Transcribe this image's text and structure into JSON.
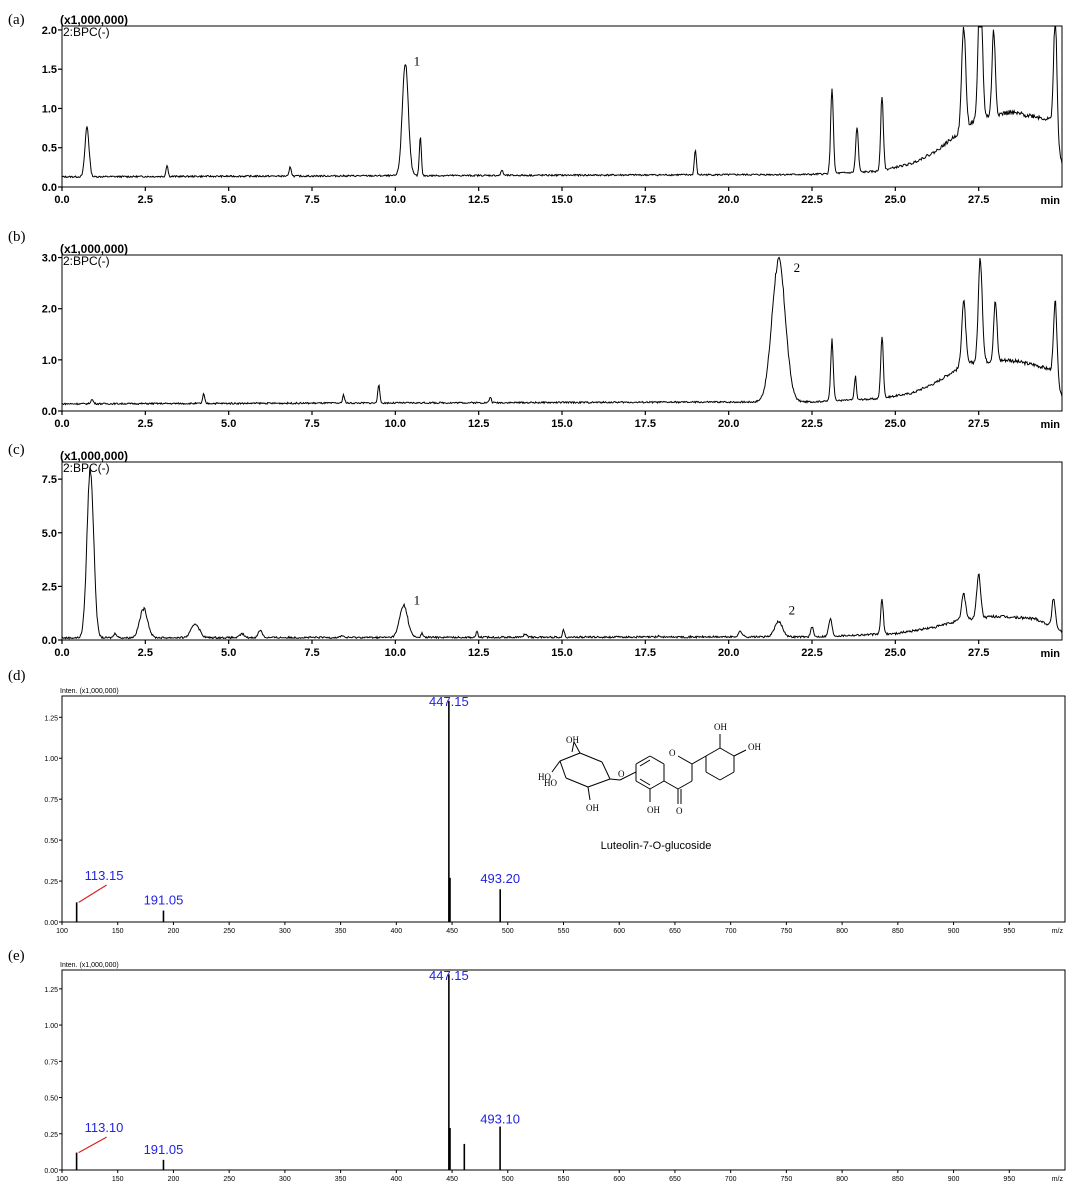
{
  "chart_data": [
    {
      "panel": "(a)",
      "type": "line",
      "scale_label": "(x1,000,000)",
      "series_label": "2:BPC(-)",
      "xlabel": "min",
      "xlim": [
        0,
        30
      ],
      "ylim": [
        0,
        2.05
      ],
      "xticks": [
        0.0,
        2.5,
        5.0,
        7.5,
        10.0,
        12.5,
        15.0,
        17.5,
        20.0,
        22.5,
        25.0,
        27.5
      ],
      "xtick_labels": [
        "0.0",
        "2.5",
        "5.0",
        "7.5",
        "10.0",
        "12.5",
        "15.0",
        "17.5",
        "20.0",
        "22.5",
        "25.0",
        "27.5"
      ],
      "yticks": [
        0.0,
        0.5,
        1.0,
        1.5,
        2.0
      ],
      "ytick_labels": [
        "0.0",
        "0.5",
        "1.0",
        "1.5",
        "2.0"
      ],
      "baseline": 0.13,
      "background": [
        [
          0,
          0.13
        ],
        [
          22.5,
          0.16
        ],
        [
          24.5,
          0.2
        ],
        [
          25.5,
          0.3
        ],
        [
          26.2,
          0.45
        ],
        [
          26.8,
          0.65
        ],
        [
          27.3,
          0.82
        ],
        [
          27.8,
          0.9
        ],
        [
          28.4,
          0.95
        ],
        [
          29.2,
          0.9
        ],
        [
          29.7,
          0.85
        ],
        [
          29.9,
          0.45
        ],
        [
          30,
          0.3
        ]
      ],
      "peaks": [
        {
          "x": 0.75,
          "y": 0.77,
          "w": 0.06
        },
        {
          "x": 3.15,
          "y": 0.28,
          "w": 0.03
        },
        {
          "x": 6.85,
          "y": 0.25,
          "w": 0.03
        },
        {
          "x": 10.3,
          "y": 1.57,
          "w": 0.09
        },
        {
          "x": 10.75,
          "y": 0.62,
          "w": 0.03
        },
        {
          "x": 13.2,
          "y": 0.2,
          "w": 0.03
        },
        {
          "x": 19.0,
          "y": 0.45,
          "w": 0.03
        },
        {
          "x": 23.1,
          "y": 1.23,
          "w": 0.04
        },
        {
          "x": 23.85,
          "y": 0.7,
          "w": 0.04
        },
        {
          "x": 24.6,
          "y": 1.1,
          "w": 0.04
        },
        {
          "x": 27.05,
          "y": 1.45,
          "w": 0.06
        },
        {
          "x": 27.55,
          "y": 2.02,
          "w": 0.06
        },
        {
          "x": 27.95,
          "y": 1.2,
          "w": 0.05
        },
        {
          "x": 29.8,
          "y": 1.62,
          "w": 0.05
        }
      ],
      "peak_labels": [
        {
          "text": "1",
          "x": 10.55,
          "y": 1.55
        }
      ]
    },
    {
      "panel": "(b)",
      "type": "line",
      "scale_label": "(x1,000,000)",
      "series_label": "2:BPC(-)",
      "xlabel": "min",
      "xlim": [
        0,
        30
      ],
      "ylim": [
        0,
        3.05
      ],
      "xticks": [
        0.0,
        2.5,
        5.0,
        7.5,
        10.0,
        12.5,
        15.0,
        17.5,
        20.0,
        22.5,
        25.0,
        27.5
      ],
      "xtick_labels": [
        "0.0",
        "2.5",
        "5.0",
        "7.5",
        "10.0",
        "12.5",
        "15.0",
        "17.5",
        "20.0",
        "22.5",
        "25.0",
        "27.5"
      ],
      "yticks": [
        0.0,
        1.0,
        2.0,
        3.0
      ],
      "ytick_labels": [
        "0.0",
        "1.0",
        "2.0",
        "3.0"
      ],
      "baseline": 0.14,
      "background": [
        [
          0,
          0.14
        ],
        [
          22.5,
          0.18
        ],
        [
          24.5,
          0.24
        ],
        [
          25.5,
          0.35
        ],
        [
          26.2,
          0.55
        ],
        [
          26.8,
          0.8
        ],
        [
          27.3,
          0.95
        ],
        [
          28.4,
          1.0
        ],
        [
          29.2,
          0.9
        ],
        [
          29.7,
          0.8
        ],
        [
          29.9,
          0.45
        ],
        [
          30,
          0.3
        ]
      ],
      "peaks": [
        {
          "x": 0.9,
          "y": 0.22,
          "w": 0.04
        },
        {
          "x": 4.25,
          "y": 0.32,
          "w": 0.03
        },
        {
          "x": 8.45,
          "y": 0.3,
          "w": 0.03
        },
        {
          "x": 9.5,
          "y": 0.5,
          "w": 0.03
        },
        {
          "x": 12.85,
          "y": 0.25,
          "w": 0.03
        },
        {
          "x": 21.5,
          "y": 2.9,
          "w": 0.2
        },
        {
          "x": 23.1,
          "y": 1.33,
          "w": 0.04
        },
        {
          "x": 23.8,
          "y": 0.6,
          "w": 0.03
        },
        {
          "x": 24.6,
          "y": 1.35,
          "w": 0.04
        },
        {
          "x": 27.05,
          "y": 1.4,
          "w": 0.06
        },
        {
          "x": 27.55,
          "y": 2.15,
          "w": 0.06
        },
        {
          "x": 28.0,
          "y": 1.3,
          "w": 0.05
        },
        {
          "x": 29.8,
          "y": 1.63,
          "w": 0.05
        }
      ],
      "peak_labels": [
        {
          "text": "2",
          "x": 21.95,
          "y": 2.72
        }
      ]
    },
    {
      "panel": "(c)",
      "type": "line",
      "scale_label": "(x1,000,000)",
      "series_label": "2:BPC(-)",
      "xlabel": "min",
      "xlim": [
        0,
        30
      ],
      "ylim": [
        0,
        8.3
      ],
      "xticks": [
        0.0,
        2.5,
        5.0,
        7.5,
        10.0,
        12.5,
        15.0,
        17.5,
        20.0,
        22.5,
        25.0,
        27.5
      ],
      "xtick_labels": [
        "0.0",
        "2.5",
        "5.0",
        "7.5",
        "10.0",
        "12.5",
        "15.0",
        "17.5",
        "20.0",
        "22.5",
        "25.0",
        "27.5"
      ],
      "yticks": [
        0.0,
        2.5,
        5.0,
        7.5
      ],
      "ytick_labels": [
        "0.0",
        "2.5",
        "5.0",
        "7.5"
      ],
      "baseline": 0.1,
      "background": [
        [
          0,
          0.1
        ],
        [
          22.5,
          0.15
        ],
        [
          25.0,
          0.3
        ],
        [
          26.2,
          0.6
        ],
        [
          27.0,
          0.95
        ],
        [
          28.0,
          1.1
        ],
        [
          29.2,
          1.0
        ],
        [
          29.9,
          0.5
        ],
        [
          30,
          0.4
        ]
      ],
      "peaks": [
        {
          "x": 0.85,
          "y": 8.0,
          "w": 0.1
        },
        {
          "x": 1.6,
          "y": 0.3,
          "w": 0.05
        },
        {
          "x": 2.45,
          "y": 1.45,
          "w": 0.12
        },
        {
          "x": 4.0,
          "y": 0.75,
          "w": 0.12
        },
        {
          "x": 5.4,
          "y": 0.28,
          "w": 0.06
        },
        {
          "x": 5.95,
          "y": 0.45,
          "w": 0.06
        },
        {
          "x": 8.4,
          "y": 0.2,
          "w": 0.04
        },
        {
          "x": 10.25,
          "y": 1.6,
          "w": 0.12
        },
        {
          "x": 10.8,
          "y": 0.3,
          "w": 0.03
        },
        {
          "x": 12.45,
          "y": 0.35,
          "w": 0.03
        },
        {
          "x": 13.9,
          "y": 0.25,
          "w": 0.05
        },
        {
          "x": 15.05,
          "y": 0.45,
          "w": 0.03
        },
        {
          "x": 17.9,
          "y": 0.15,
          "w": 0.04
        },
        {
          "x": 20.35,
          "y": 0.35,
          "w": 0.06
        },
        {
          "x": 21.5,
          "y": 0.8,
          "w": 0.12
        },
        {
          "x": 22.5,
          "y": 0.55,
          "w": 0.04
        },
        {
          "x": 23.05,
          "y": 0.9,
          "w": 0.05
        },
        {
          "x": 24.6,
          "y": 1.7,
          "w": 0.04
        },
        {
          "x": 27.05,
          "y": 1.3,
          "w": 0.06
        },
        {
          "x": 27.5,
          "y": 2.1,
          "w": 0.06
        },
        {
          "x": 29.75,
          "y": 1.45,
          "w": 0.05
        }
      ],
      "peak_labels": [
        {
          "text": "1",
          "x": 10.55,
          "y": 1.65
        },
        {
          "text": "2",
          "x": 21.8,
          "y": 1.2
        }
      ]
    },
    {
      "panel": "(d)",
      "type": "bar",
      "scale_label": "Inten. (x1,000,000)",
      "xlabel": "m/z",
      "xlim": [
        100,
        1000
      ],
      "ylim": [
        0,
        1.38
      ],
      "xticks": [
        100,
        150,
        200,
        250,
        300,
        350,
        400,
        450,
        500,
        550,
        600,
        650,
        700,
        750,
        800,
        850,
        900,
        950
      ],
      "xtick_labels": [
        "100",
        "150",
        "200",
        "250",
        "300",
        "350",
        "400",
        "450",
        "500",
        "550",
        "600",
        "650",
        "700",
        "750",
        "800",
        "850",
        "900",
        "950"
      ],
      "yticks": [
        0.0,
        0.25,
        0.5,
        0.75,
        1.0,
        1.25
      ],
      "ytick_labels": [
        "0.00",
        "0.25",
        "0.50",
        "0.75",
        "1.00",
        "1.25"
      ],
      "peaks": [
        {
          "mz": 113.15,
          "y": 0.12
        },
        {
          "mz": 191.05,
          "y": 0.07
        },
        {
          "mz": 447.15,
          "y": 1.35
        },
        {
          "mz": 448.15,
          "y": 0.27
        },
        {
          "mz": 493.2,
          "y": 0.2
        }
      ],
      "peak_labels": [
        {
          "text": "113.15",
          "mz": 113.15,
          "y": 0.22,
          "leader": true
        },
        {
          "text": "191.05",
          "mz": 191.05,
          "y": 0.09
        },
        {
          "text": "447.15",
          "mz": 447.15,
          "y": 1.35
        },
        {
          "text": "493.20",
          "mz": 493.2,
          "y": 0.22
        }
      ],
      "structure": {
        "name": "Luteolin-7-O-glucoside",
        "atoms": [
          "OH",
          "HO",
          "HO",
          "OH",
          "OH",
          "O",
          "OH",
          "OH",
          "O",
          "O"
        ]
      }
    },
    {
      "panel": "(e)",
      "type": "bar",
      "scale_label": "Inten. (x1,000,000)",
      "xlabel": "m/z",
      "xlim": [
        100,
        1000
      ],
      "ylim": [
        0,
        1.38
      ],
      "xticks": [
        100,
        150,
        200,
        250,
        300,
        350,
        400,
        450,
        500,
        550,
        600,
        650,
        700,
        750,
        800,
        850,
        900,
        950
      ],
      "xtick_labels": [
        "100",
        "150",
        "200",
        "250",
        "300",
        "350",
        "400",
        "450",
        "500",
        "550",
        "600",
        "650",
        "700",
        "750",
        "800",
        "850",
        "900",
        "950"
      ],
      "yticks": [
        0.0,
        0.25,
        0.5,
        0.75,
        1.0,
        1.25
      ],
      "ytick_labels": [
        "0.00",
        "0.25",
        "0.50",
        "0.75",
        "1.00",
        "1.25"
      ],
      "peaks": [
        {
          "mz": 113.1,
          "y": 0.12
        },
        {
          "mz": 191.05,
          "y": 0.07
        },
        {
          "mz": 447.15,
          "y": 1.35
        },
        {
          "mz": 448.15,
          "y": 0.29
        },
        {
          "mz": 461.0,
          "y": 0.18
        },
        {
          "mz": 493.1,
          "y": 0.3
        }
      ],
      "peak_labels": [
        {
          "text": "113.10",
          "mz": 113.1,
          "y": 0.22,
          "leader": true
        },
        {
          "text": "191.05",
          "mz": 191.05,
          "y": 0.09
        },
        {
          "text": "447.15",
          "mz": 447.15,
          "y": 1.35
        },
        {
          "text": "493.10",
          "mz": 493.1,
          "y": 0.3
        }
      ]
    }
  ]
}
